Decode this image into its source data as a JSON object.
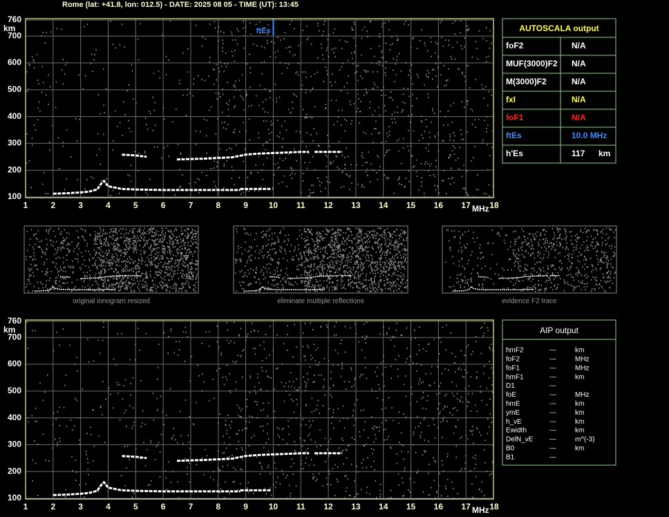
{
  "header": {
    "title": "Rome (lat: +41.8, lon: 012.5) - DATE: 2025 08 05 - TIME (UT): 13:45"
  },
  "ionograms": [
    {
      "xlim": [
        1,
        18
      ],
      "ylim": [
        100,
        760
      ],
      "xticks": [
        1,
        2,
        3,
        4,
        5,
        6,
        7,
        8,
        9,
        10,
        11,
        12,
        13,
        14,
        15,
        16,
        17,
        18
      ],
      "yticks": [
        100,
        200,
        300,
        400,
        500,
        600,
        700,
        760
      ],
      "x_unit": "MHz",
      "y_unit": "km",
      "echoes": [
        {
          "x": [
            2.0,
            2.5,
            3.0,
            3.3,
            3.6,
            3.75,
            3.85,
            4.0,
            4.5,
            5,
            6,
            7,
            8,
            8.8
          ],
          "y": [
            112,
            114,
            117,
            120,
            128,
            150,
            160,
            140,
            130,
            128,
            126,
            126,
            126,
            126
          ]
        },
        {
          "x": [
            8.8,
            9.9
          ],
          "y": [
            130,
            130
          ]
        },
        {
          "x": [
            4.5,
            5.0,
            5.4
          ],
          "y": [
            258,
            255,
            250
          ]
        },
        {
          "x": [
            6.5,
            7.5,
            8.5,
            9.0,
            9.5,
            10,
            10.5,
            11.0,
            11.3
          ],
          "y": [
            240,
            243,
            248,
            258,
            262,
            264,
            266,
            268,
            268
          ]
        },
        {
          "x": [
            11.5,
            12.5
          ],
          "y": [
            268,
            268
          ]
        }
      ],
      "markers": [
        {
          "label": "ftEs",
          "x": 10
        }
      ]
    },
    {
      "xlim": [
        1,
        18
      ],
      "ylim": [
        100,
        760
      ],
      "xticks": [
        1,
        2,
        3,
        4,
        5,
        6,
        7,
        8,
        9,
        10,
        11,
        12,
        13,
        14,
        15,
        16,
        17,
        18
      ],
      "yticks": [
        100,
        200,
        300,
        400,
        500,
        600,
        700,
        760
      ],
      "x_unit": "MHz",
      "y_unit": "km",
      "echoes": [
        {
          "x": [
            2.0,
            2.5,
            3.0,
            3.3,
            3.6,
            3.75,
            3.85,
            4.0,
            4.5,
            5,
            6,
            7,
            8,
            8.8
          ],
          "y": [
            112,
            114,
            117,
            120,
            128,
            150,
            160,
            140,
            130,
            128,
            126,
            126,
            126,
            126
          ]
        },
        {
          "x": [
            8.8,
            9.9
          ],
          "y": [
            130,
            130
          ]
        },
        {
          "x": [
            4.5,
            5.0,
            5.4
          ],
          "y": [
            258,
            255,
            250
          ]
        },
        {
          "x": [
            6.5,
            7.5,
            8.5,
            9.0,
            9.5,
            10,
            10.5,
            11.0,
            11.3
          ],
          "y": [
            240,
            243,
            248,
            258,
            262,
            264,
            266,
            268,
            268
          ]
        },
        {
          "x": [
            11.5,
            12.5
          ],
          "y": [
            268,
            268
          ]
        }
      ]
    }
  ],
  "thumbnails": [
    {
      "caption": "original ionogram resized"
    },
    {
      "caption": "eliminate multiple reflections"
    },
    {
      "caption": "evidence F2 trace"
    }
  ],
  "autoscala": {
    "title": "AUTOSCALA output",
    "rows": [
      {
        "label": "foF2",
        "value": "N/A",
        "color": "#ffffff"
      },
      {
        "label": "MUF(3000)F2",
        "value": "N/A",
        "color": "#ffffff"
      },
      {
        "label": "M(3000)F2",
        "value": "N/A",
        "color": "#ffffff"
      },
      {
        "label": "fxI",
        "value": "N/A",
        "color": "#ffff40"
      },
      {
        "label": "foF1",
        "value": "N/A",
        "color": "#ff2020"
      },
      {
        "label": "ftEs",
        "value": "10.0 MHz",
        "color": "#3c8cff"
      },
      {
        "label": "h'Es",
        "value": "117",
        "unit": "km",
        "color": "#ffffff"
      }
    ]
  },
  "aip": {
    "title": "AIP output",
    "rows": [
      [
        "hmF2",
        "---",
        "km"
      ],
      [
        "foF2",
        "---",
        "MHz"
      ],
      [
        "foF1",
        "---",
        "MHz"
      ],
      [
        "hmF1",
        "---",
        "km"
      ],
      [
        "D1",
        "---"
      ],
      [
        "foE",
        "---",
        "MHz"
      ],
      [
        "hmE",
        "---",
        "km"
      ],
      [
        "ymE",
        "---",
        "km"
      ],
      [
        "h_vE",
        "---",
        "km"
      ],
      [
        "Ewidth",
        "---",
        "km"
      ],
      [
        "DelN_vE",
        "---",
        "m^(-3)"
      ],
      [
        "B0",
        "---",
        "km"
      ],
      [
        "B1",
        "---"
      ]
    ]
  }
}
